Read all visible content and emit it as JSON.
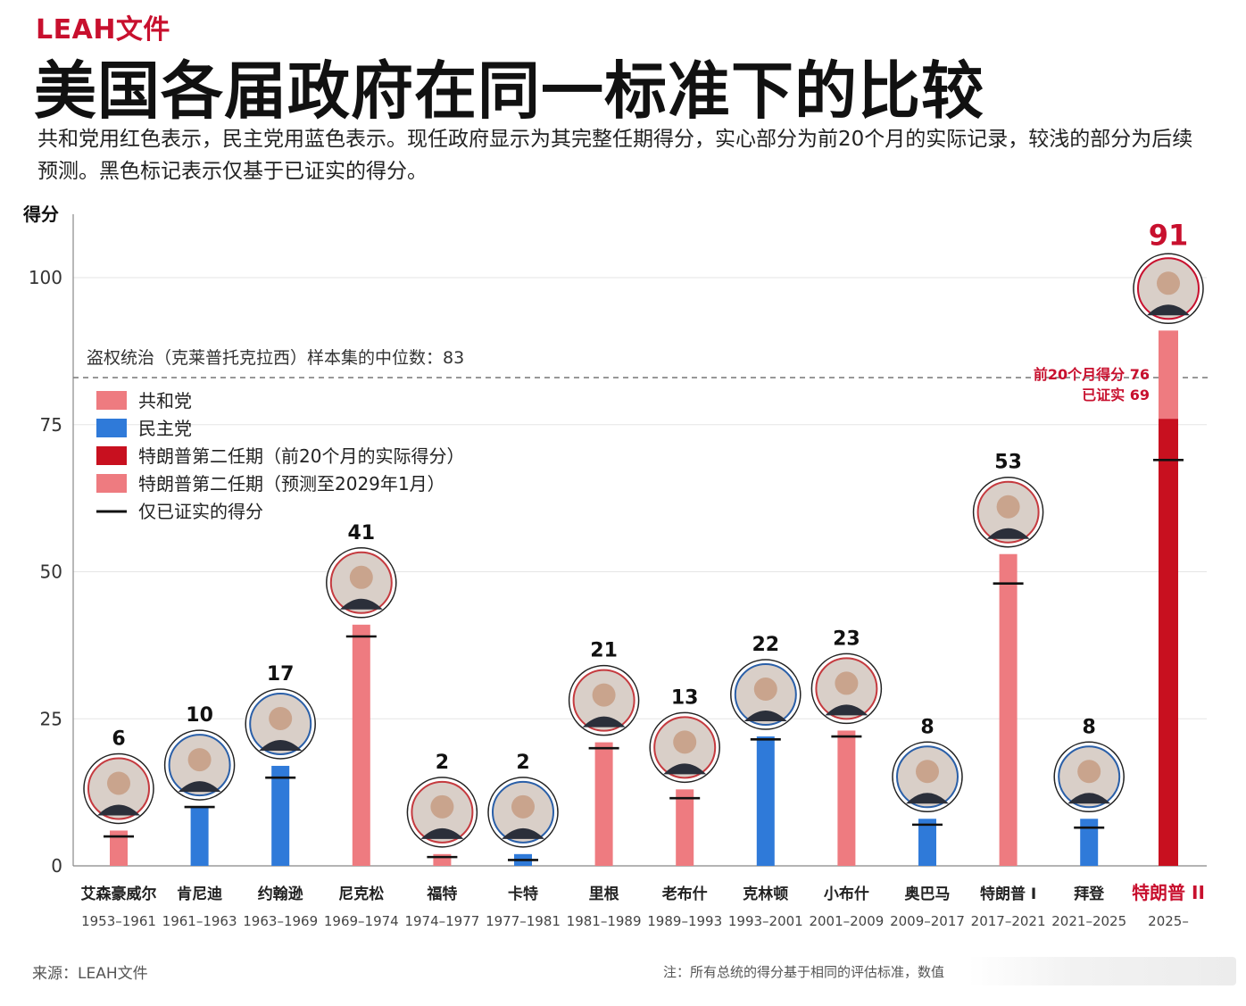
{
  "brand": "LEAH文件",
  "title": "美国各届政府在同一标准下的比较",
  "subtitle": "共和党用红色表示，民主党用蓝色表示。现任政府显示为其完整任期得分，实心部分为前20个月的实际记录，较浅的部分为后续预测。黑色标记表示仅基于已证实的得分。",
  "source": "来源：LEAH文件",
  "note": "注：所有总统的得分基于相同的评估标准，数值",
  "colors": {
    "republican": "#ee7b80",
    "democrat": "#2f7ad9",
    "trump2_actual": "#c8101f",
    "trump2_projected": "#ee7b80",
    "highlight_text": "#c8102e",
    "axis": "#999999"
  },
  "chart_data": {
    "type": "bar",
    "ylabel": "得分",
    "ylim": [
      0,
      100
    ],
    "yticks": [
      0,
      25,
      50,
      75,
      100
    ],
    "reference_line": {
      "label": "盗权统治（克莱普托克拉西）样本集的中位数：83",
      "value": 83,
      "style": "dashed"
    },
    "legend": {
      "placement": "top-left",
      "entries": [
        {
          "label": "共和党",
          "color": "#ee7b80",
          "kind": "swatch"
        },
        {
          "label": "民主党",
          "color": "#2f7ad9",
          "kind": "swatch"
        },
        {
          "label": "特朗普第二任期（前20个月的实际得分）",
          "color": "#c8101f",
          "kind": "swatch"
        },
        {
          "label": "特朗普第二任期（预测至2029年1月）",
          "color": "#ee7b80",
          "kind": "swatch"
        },
        {
          "label": "仅已证实的得分",
          "color": "#111111",
          "kind": "line"
        }
      ]
    },
    "categories": [
      "艾森豪威尔",
      "肯尼迪",
      "约翰逊",
      "尼克松",
      "福特",
      "卡特",
      "里根",
      "老布什",
      "克林顿",
      "小布什",
      "奥巴马",
      "特朗普 I",
      "拜登",
      "特朗普 II"
    ],
    "years": [
      "1953–1961",
      "1961–1963",
      "1963–1969",
      "1969–1974",
      "1974–1977",
      "1977–1981",
      "1981–1989",
      "1989–1993",
      "1993–2001",
      "2001–2009",
      "2009–2017",
      "2017–2021",
      "2021–2025",
      "2025–"
    ],
    "party": [
      "R",
      "D",
      "D",
      "R",
      "R",
      "D",
      "R",
      "R",
      "D",
      "R",
      "D",
      "R",
      "D",
      "R"
    ],
    "values": [
      6,
      10,
      17,
      41,
      2,
      2,
      21,
      13,
      22,
      23,
      8,
      53,
      8,
      91
    ],
    "confirmed": [
      5,
      10,
      15,
      39,
      1.5,
      1,
      20,
      11.5,
      21.5,
      22,
      7,
      48,
      6.5,
      69
    ],
    "trump2": {
      "first_20_months": 76,
      "confirmed": 69,
      "label_first20": "前20个月得分 76",
      "label_confirmed": "已证实 69"
    }
  }
}
